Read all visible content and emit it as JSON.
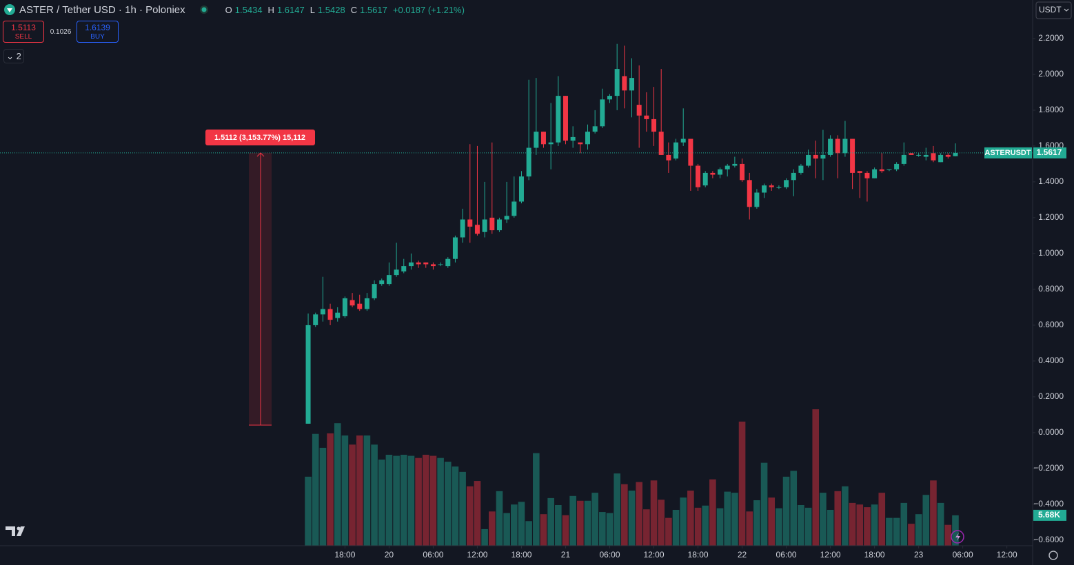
{
  "chart_data": {
    "type": "candlestick",
    "title": "ASTER / Tether USD · 1h · Poloniex",
    "ohlc_labels": [
      "O",
      "H",
      "L",
      "C"
    ],
    "change": "+0.0187 (+1.21%)",
    "up_color": "#22ab94",
    "down_color": "#f23645",
    "open": [
      0.05,
      0.6,
      0.66,
      0.69,
      0.64,
      0.65,
      0.74,
      0.72,
      0.69,
      0.75,
      0.83,
      0.83,
      0.88,
      0.9,
      0.93,
      0.95,
      0.95,
      0.94,
      0.94,
      0.93,
      0.97,
      1.09,
      1.19,
      1.16,
      1.12,
      1.2,
      1.13,
      1.19,
      1.21,
      1.29,
      1.43,
      1.59,
      1.68,
      1.61,
      1.62,
      1.88,
      1.63,
      1.62,
      1.61,
      1.68,
      1.71,
      1.86,
      1.88,
      1.99,
      1.91,
      1.83,
      1.77,
      1.75,
      1.68,
      1.55,
      1.53,
      1.62,
      1.64,
      1.49,
      1.38,
      1.45,
      1.44,
      1.47,
      1.49,
      1.5,
      1.41,
      1.26,
      1.34,
      1.38,
      1.37,
      1.37,
      1.41,
      1.45,
      1.49,
      1.55,
      1.53,
      1.55,
      1.64,
      1.56,
      1.64,
      1.46,
      1.45,
      1.42,
      1.47,
      1.47,
      1.47,
      1.5,
      1.56,
      1.55,
      1.54,
      1.56,
      1.51,
      1.55,
      1.5434
    ],
    "high": [
      0.665,
      0.67,
      0.87,
      0.72,
      0.7,
      0.76,
      0.78,
      0.77,
      0.78,
      0.85,
      0.86,
      0.95,
      1.06,
      0.97,
      1.0,
      0.96,
      0.95,
      0.95,
      0.95,
      0.98,
      1.1,
      1.25,
      1.61,
      1.6,
      1.4,
      1.62,
      1.2,
      1.4,
      1.43,
      1.46,
      1.97,
      1.98,
      1.68,
      1.84,
      1.99,
      1.88,
      1.71,
      1.62,
      1.72,
      1.8,
      1.92,
      1.89,
      2.17,
      2.16,
      2.09,
      2.05,
      1.9,
      1.93,
      2.03,
      1.62,
      1.64,
      1.81,
      1.64,
      1.5,
      1.46,
      1.46,
      1.48,
      1.5,
      1.54,
      1.53,
      1.45,
      1.36,
      1.39,
      1.39,
      1.38,
      1.42,
      1.47,
      1.5,
      1.58,
      1.63,
      1.69,
      1.66,
      1.66,
      1.74,
      1.64,
      1.46,
      1.46,
      1.48,
      1.56,
      1.47,
      1.51,
      1.62,
      1.56,
      1.56,
      1.59,
      1.6,
      1.56,
      1.56,
      1.6147
    ],
    "low": [
      0.05,
      0.59,
      0.62,
      0.6,
      0.62,
      0.64,
      0.7,
      0.68,
      0.68,
      0.74,
      0.82,
      0.82,
      0.87,
      0.89,
      0.91,
      0.92,
      0.92,
      0.91,
      0.93,
      0.92,
      0.95,
      1.06,
      1.06,
      1.1,
      1.09,
      1.11,
      1.12,
      1.17,
      1.2,
      1.28,
      1.41,
      1.55,
      1.59,
      1.47,
      1.6,
      1.61,
      1.59,
      1.56,
      1.58,
      1.67,
      1.7,
      1.84,
      1.8,
      1.81,
      1.76,
      1.59,
      1.68,
      1.6,
      1.55,
      1.45,
      1.52,
      1.6,
      1.35,
      1.35,
      1.37,
      1.42,
      1.42,
      1.43,
      1.48,
      1.4,
      1.19,
      1.25,
      1.31,
      1.35,
      1.36,
      1.36,
      1.32,
      1.44,
      1.48,
      1.42,
      1.41,
      1.54,
      1.42,
      1.54,
      1.36,
      1.31,
      1.29,
      1.42,
      1.45,
      1.46,
      1.46,
      1.49,
      1.55,
      1.54,
      1.52,
      1.51,
      1.51,
      1.53,
      1.5428
    ],
    "close": [
      0.6,
      0.66,
      0.69,
      0.63,
      0.67,
      0.75,
      0.71,
      0.69,
      0.75,
      0.83,
      0.85,
      0.88,
      0.91,
      0.93,
      0.95,
      0.94,
      0.94,
      0.93,
      0.94,
      0.97,
      1.09,
      1.19,
      1.15,
      1.11,
      1.19,
      1.13,
      1.19,
      1.21,
      1.29,
      1.43,
      1.59,
      1.68,
      1.61,
      1.62,
      1.88,
      1.63,
      1.65,
      1.61,
      1.68,
      1.71,
      1.86,
      1.88,
      2.03,
      1.91,
      1.98,
      1.77,
      1.75,
      1.68,
      1.55,
      1.52,
      1.62,
      1.64,
      1.49,
      1.37,
      1.45,
      1.44,
      1.47,
      1.49,
      1.5,
      1.41,
      1.26,
      1.34,
      1.38,
      1.37,
      1.37,
      1.41,
      1.45,
      1.49,
      1.55,
      1.53,
      1.55,
      1.64,
      1.56,
      1.64,
      1.45,
      1.45,
      1.42,
      1.47,
      1.46,
      1.47,
      1.5,
      1.55,
      1.55,
      1.55,
      1.55,
      1.52,
      1.55,
      1.54,
      1.5617
    ],
    "volume": {
      "values": [
        12900,
        20900,
        18300,
        21000,
        22900,
        20600,
        18900,
        20600,
        20600,
        18900,
        16100,
        17000,
        16800,
        17000,
        16800,
        16400,
        17000,
        16800,
        16400,
        15700,
        14800,
        13800,
        11100,
        12100,
        3100,
        6400,
        10200,
        6100,
        7700,
        8200,
        4600,
        17300,
        5900,
        8900,
        7600,
        5700,
        9300,
        8400,
        8400,
        9900,
        6300,
        6100,
        13500,
        11500,
        10300,
        11900,
        6800,
        12200,
        8600,
        5200,
        6700,
        9000,
        10300,
        7100,
        7500,
        12400,
        7000,
        10100,
        9900,
        23200,
        6400,
        8500,
        15500,
        9000,
        7000,
        12900,
        14000,
        7600,
        7100,
        25500,
        9900,
        6700,
        10200,
        11100,
        8000,
        7700,
        7200,
        7700,
        9900,
        5200,
        5200,
        8000,
        4100,
        5900,
        9500,
        12200,
        8000,
        3900,
        5680
      ],
      "value_labels": [
        null,
        null,
        null,
        null,
        null,
        null,
        null,
        null,
        null,
        null,
        null,
        null,
        null,
        null,
        null,
        null,
        null,
        null,
        null,
        null,
        null,
        null,
        null,
        null,
        null,
        null,
        null,
        null,
        null,
        null,
        null,
        null,
        null,
        null,
        null,
        null,
        null,
        null,
        null,
        null,
        null,
        null,
        null,
        null,
        null,
        null,
        null,
        null,
        null,
        null,
        null,
        null,
        null,
        null,
        null,
        null,
        null,
        null,
        null,
        null,
        null,
        null,
        null,
        null,
        null,
        null,
        null,
        null,
        null,
        null,
        null,
        null,
        null,
        null,
        null,
        null,
        null,
        null,
        null,
        null,
        null,
        null,
        null,
        null,
        null,
        null,
        null,
        null,
        "5.68K"
      ]
    },
    "xlim": [
      -41.9,
      98.5
    ],
    "xticks": [
      {
        "value": 5,
        "label": "18:00"
      },
      {
        "value": 11,
        "label": "20"
      },
      {
        "value": 17,
        "label": "06:00"
      },
      {
        "value": 23,
        "label": "12:00"
      },
      {
        "value": 29,
        "label": "18:00"
      },
      {
        "value": 35,
        "label": "21"
      },
      {
        "value": 41,
        "label": "06:00"
      },
      {
        "value": 47,
        "label": "12:00"
      },
      {
        "value": 53,
        "label": "18:00"
      },
      {
        "value": 59,
        "label": "22"
      },
      {
        "value": 65,
        "label": "06:00"
      },
      {
        "value": 71,
        "label": "12:00"
      },
      {
        "value": 77,
        "label": "18:00"
      },
      {
        "value": 83,
        "label": "23"
      },
      {
        "value": 89,
        "label": "06:00"
      },
      {
        "value": 95,
        "label": "12:00"
      }
    ],
    "ylim": [
      -0.631,
      2.415
    ],
    "yticks": [
      {
        "value": 2.2,
        "label": "2.2000"
      },
      {
        "value": 2.0,
        "label": "2.0000"
      },
      {
        "value": 1.8,
        "label": "1.8000"
      },
      {
        "value": 1.6,
        "label": "1.6000"
      },
      {
        "value": 1.4,
        "label": "1.4000"
      },
      {
        "value": 1.2,
        "label": "1.2000"
      },
      {
        "value": 1.0,
        "label": "1.0000"
      },
      {
        "value": 0.8,
        "label": "0.8000"
      },
      {
        "value": 0.6,
        "label": "0.6000"
      },
      {
        "value": 0.4,
        "label": "0.4000"
      },
      {
        "value": 0.2,
        "label": "0.2000"
      },
      {
        "value": 0,
        "label": "0.0000"
      },
      {
        "value": -0.2,
        "label": "−0.2000"
      },
      {
        "value": -0.4,
        "label": "−0.4000"
      },
      {
        "value": -0.6,
        "label": "−0.6000"
      }
    ],
    "symbol_tag": "ASTERUSDT",
    "currency": "USDT",
    "annotation": "1.5112 (3,153.77%) 15,112"
  },
  "trade_panel": {
    "sell_price": "1.5113",
    "sell_label": "SELL",
    "spread": "0.1026",
    "buy_price": "1.6139",
    "buy_label": "BUY"
  },
  "indicator_count": "2"
}
